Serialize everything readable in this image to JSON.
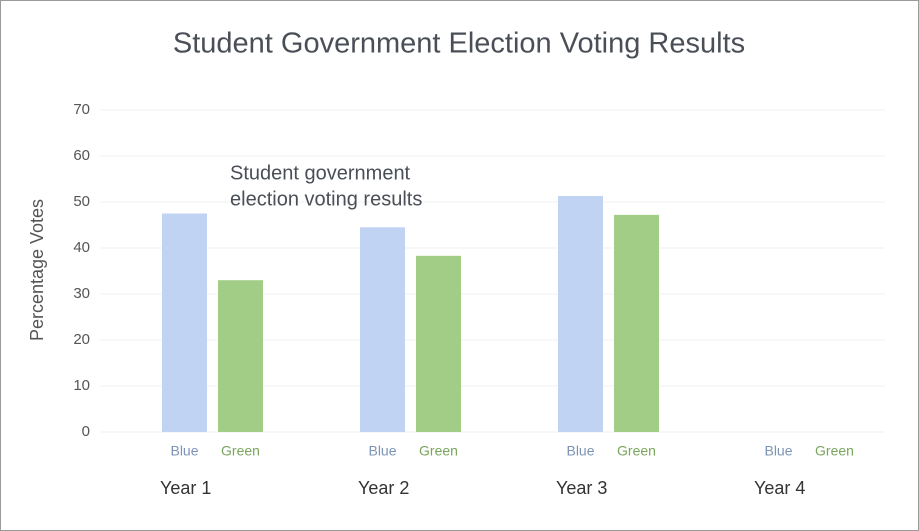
{
  "chart_data": {
    "type": "bar",
    "title": "Student Government Election Voting Results",
    "y_label": "Percentage Votes",
    "annotation": [
      "Student government",
      "election voting results"
    ],
    "categories": [
      "Year 1",
      "Year 2",
      "Year 3",
      "Year 4"
    ],
    "series": [
      {
        "name": "Blue",
        "color": "#c0d3f2",
        "label_color": "#7c93b6",
        "values": [
          47.5,
          44.5,
          51.3,
          null
        ]
      },
      {
        "name": "Green",
        "color": "#a2cd86",
        "label_color": "#79a55c",
        "values": [
          33,
          38.3,
          47.2,
          null
        ]
      }
    ],
    "ylim": [
      0,
      70
    ],
    "yticks": [
      0,
      10,
      20,
      30,
      40,
      50,
      60,
      70
    ],
    "grid": true
  }
}
